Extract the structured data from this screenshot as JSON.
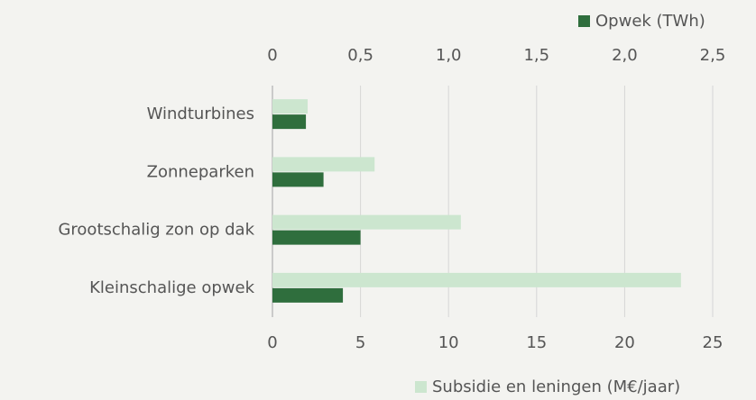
{
  "chart_data": {
    "type": "bar",
    "orientation": "horizontal",
    "categories": [
      "Windturbines",
      "Zonneparken",
      "Grootschalig zon op dak",
      "Kleinschalige opwek"
    ],
    "series": [
      {
        "name": "Subsidie en leningen (M€/jaar)",
        "color": "#cce6cf",
        "axis": "x",
        "values": [
          2.0,
          5.8,
          10.7,
          23.2
        ]
      },
      {
        "name": "Opwek (TWh)",
        "color": "#2f6e3d",
        "axis": "x2",
        "values": [
          0.19,
          0.29,
          0.5,
          0.4
        ]
      }
    ],
    "xlim": [
      0,
      25
    ],
    "xticks": [
      0,
      5,
      10,
      15,
      20,
      25
    ],
    "x2lim": [
      0,
      2.5
    ],
    "x2ticks": [
      0,
      {
        "value": 0.5,
        "label": "0,5"
      },
      {
        "value": 1.0,
        "label": "1,0"
      },
      {
        "value": 1.5,
        "label": "1,5"
      },
      {
        "value": 2.0,
        "label": "2,0"
      },
      {
        "value": 2.5,
        "label": "2,5"
      }
    ],
    "grid": true
  }
}
